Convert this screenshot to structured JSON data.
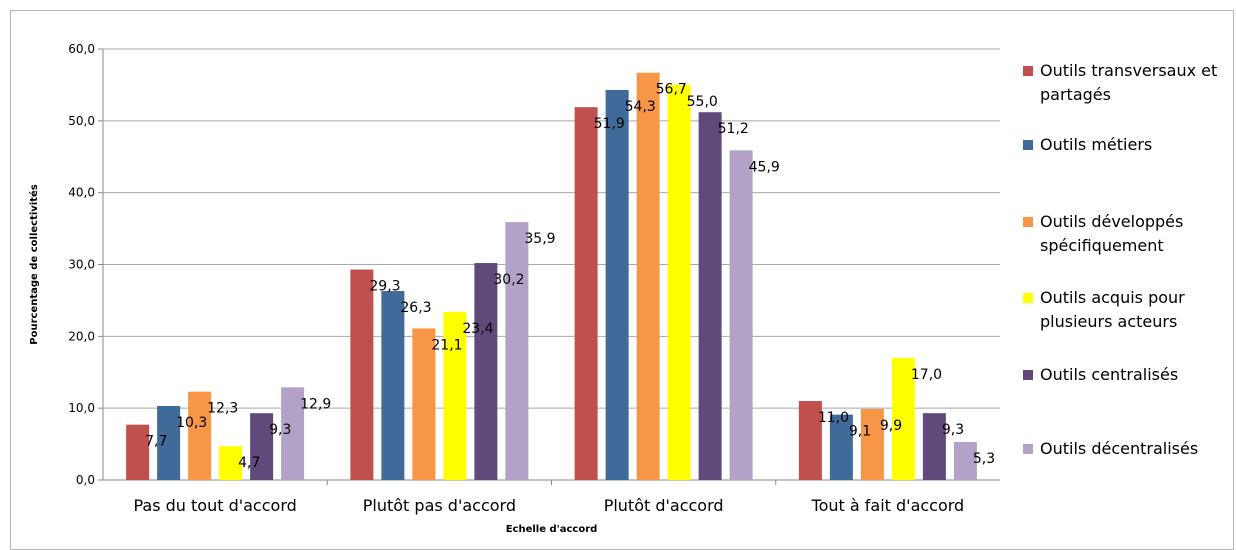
{
  "chart_data": {
    "type": "bar",
    "title": "",
    "xlabel": "Echelle d'accord",
    "ylabel": "Pourcentage de collectivités",
    "ylim": [
      0,
      60
    ],
    "yticks": [
      "0,0",
      "10,0",
      "20,0",
      "30,0",
      "40,0",
      "50,0",
      "60,0"
    ],
    "grid": true,
    "legend_position": "right",
    "categories": [
      "Pas du tout d'accord",
      "Plutôt pas d'accord",
      "Plutôt d'accord",
      "Tout à fait d'accord"
    ],
    "series": [
      {
        "name": "Outils transversaux et partagés",
        "legend_lines": [
          "Outils transversaux et",
          "partagés"
        ],
        "color": "#c0504d",
        "values": [
          7.7,
          29.3,
          51.9,
          11.0
        ],
        "labels": [
          "7,7",
          "29,3",
          "51,9",
          "11,0"
        ]
      },
      {
        "name": "Outils métiers",
        "legend_lines": [
          "Outils métiers"
        ],
        "color": "#3f6a99",
        "values": [
          10.3,
          26.3,
          54.3,
          9.1
        ],
        "labels": [
          "10,3",
          "26,3",
          "54,3",
          "9,1"
        ]
      },
      {
        "name": "Outils développés spécifiquement",
        "legend_lines": [
          "Outils développés",
          "spécifiquement"
        ],
        "color": "#f79646",
        "values": [
          12.3,
          21.1,
          56.7,
          9.9
        ],
        "labels": [
          "12,3",
          "21,1",
          "56,7",
          "9,9"
        ]
      },
      {
        "name": "Outils acquis pour plusieurs acteurs",
        "legend_lines": [
          "Outils acquis pour",
          "plusieurs acteurs"
        ],
        "color": "#ffff00",
        "values": [
          4.7,
          23.4,
          55.0,
          17.0
        ],
        "labels": [
          "4,7",
          "23,4",
          "55,0",
          "17,0"
        ]
      },
      {
        "name": "Outils centralisés",
        "legend_lines": [
          "Outils centralisés"
        ],
        "color": "#604a7b",
        "values": [
          9.3,
          30.2,
          51.2,
          9.3
        ],
        "labels": [
          "9,3",
          "30,2",
          "51,2",
          "9,3"
        ]
      },
      {
        "name": "Outils décentralisés",
        "legend_lines": [
          "Outils décentralisés"
        ],
        "color": "#b3a2c7",
        "values": [
          12.9,
          35.9,
          45.9,
          5.3
        ],
        "labels": [
          "12,9",
          "35,9",
          "45,9",
          "5,3"
        ]
      }
    ]
  }
}
